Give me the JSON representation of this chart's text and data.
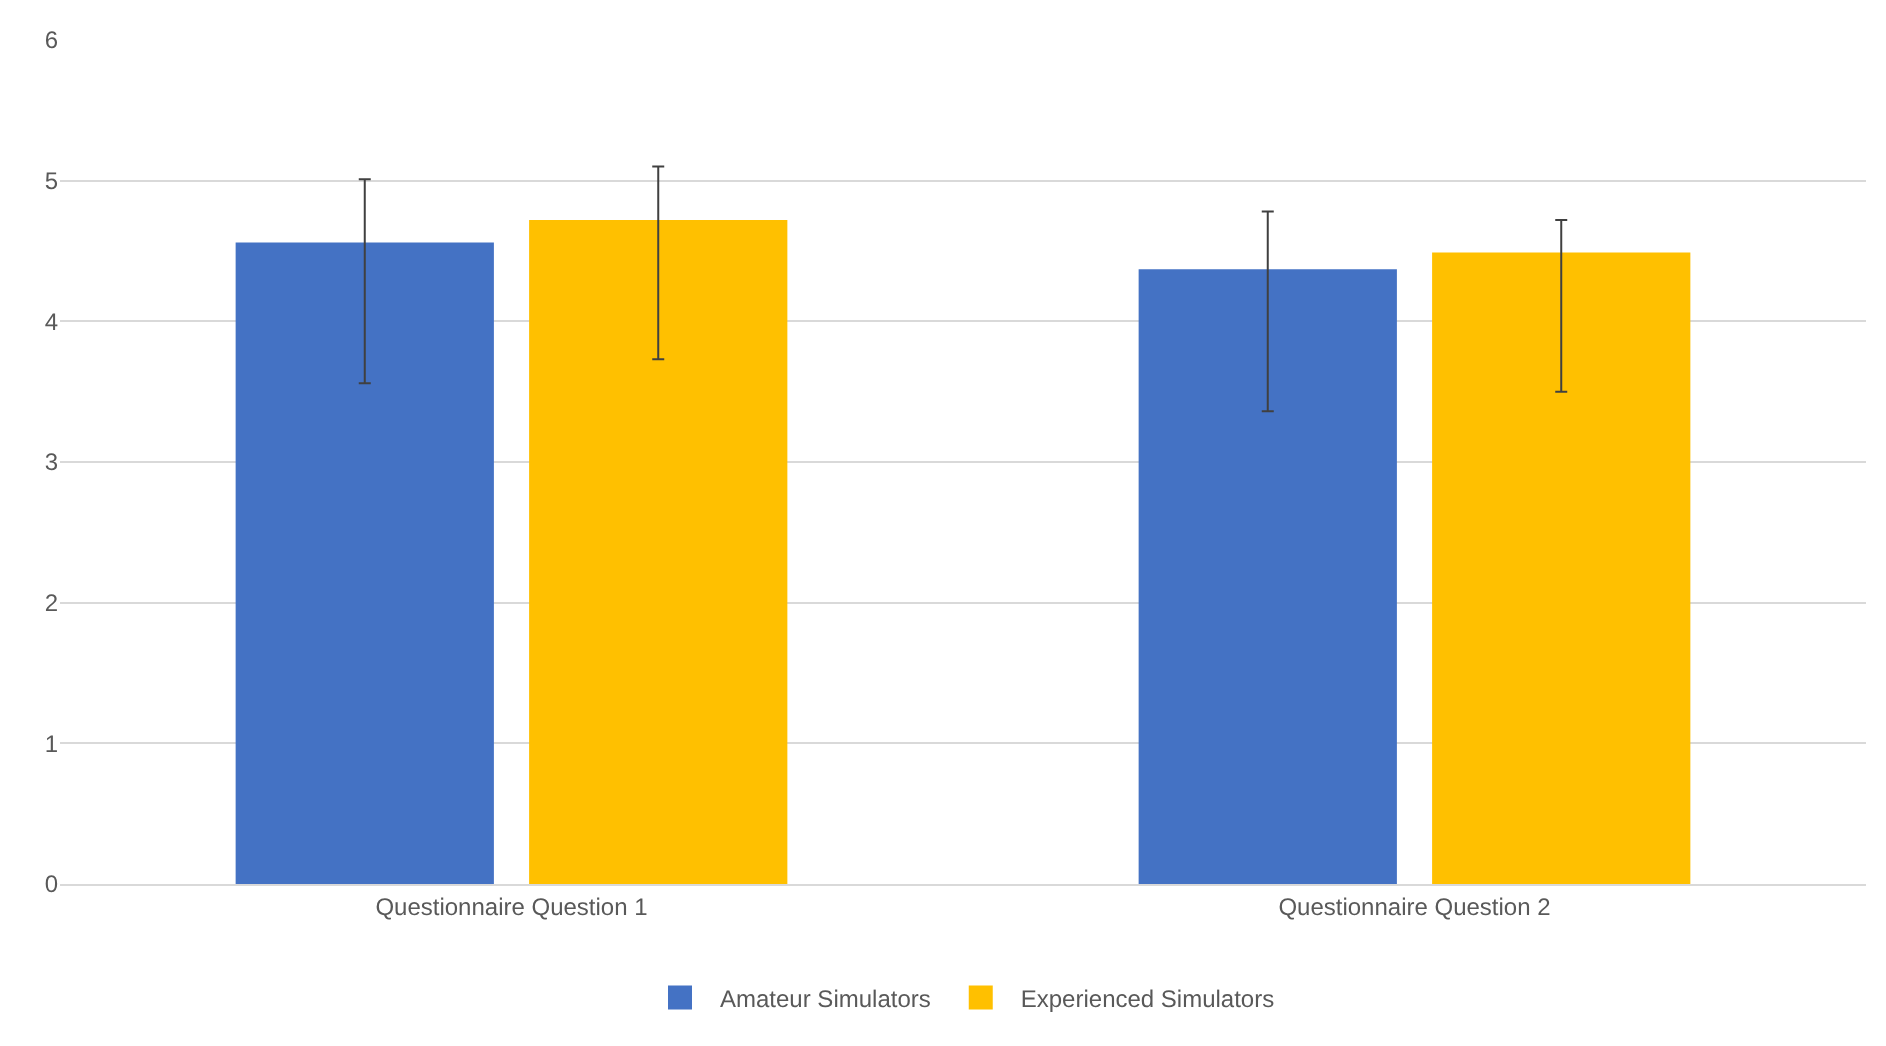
{
  "chart_data": {
    "type": "bar",
    "categories": [
      "Questionnaire Question 1",
      "Questionnaire Question 2"
    ],
    "series": [
      {
        "name": "Amateur Simulators",
        "color": "#4472c4",
        "values": [
          4.56,
          4.37
        ],
        "errors": [
          [
            3.56,
            5.01
          ],
          [
            3.36,
            4.78
          ]
        ]
      },
      {
        "name": "Experienced Simulators",
        "color": "#ffc000",
        "values": [
          4.72,
          4.49
        ],
        "errors": [
          [
            3.73,
            5.1
          ],
          [
            3.5,
            4.72
          ]
        ]
      }
    ],
    "ylim": [
      0,
      6
    ],
    "yticks": [
      0,
      1,
      2,
      3,
      4,
      5,
      6
    ],
    "grid": "y",
    "legend": "bottom"
  }
}
